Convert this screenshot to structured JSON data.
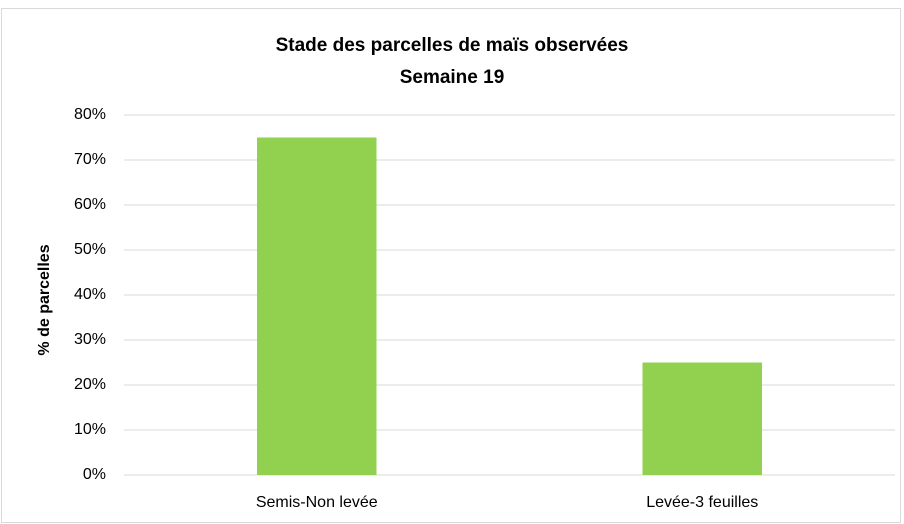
{
  "chart_data": {
    "type": "bar",
    "title": "Stade des parcelles de maïs observées",
    "subtitle": "Semaine 19",
    "ylabel": "% de parcelles",
    "categories": [
      "Semis-Non levée",
      "Levée-3 feuilles"
    ],
    "values": [
      75,
      25
    ],
    "color": "#92d050",
    "ylim": [
      0,
      80
    ],
    "yticks": [
      {
        "value": 0,
        "label": "0%"
      },
      {
        "value": 10,
        "label": "10%"
      },
      {
        "value": 20,
        "label": "20%"
      },
      {
        "value": 30,
        "label": "30%"
      },
      {
        "value": 40,
        "label": "40%"
      },
      {
        "value": 50,
        "label": "50%"
      },
      {
        "value": 60,
        "label": "60%"
      },
      {
        "value": 70,
        "label": "70%"
      },
      {
        "value": 80,
        "label": "80%"
      }
    ],
    "grid": true
  }
}
